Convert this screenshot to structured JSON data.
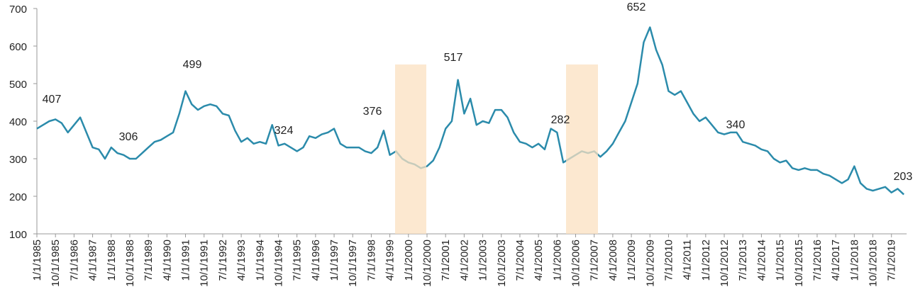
{
  "chart_data": {
    "type": "line",
    "categories": [
      "1/1/1985",
      null,
      null,
      "10/1/1985",
      null,
      null,
      "7/1/1986",
      null,
      null,
      "4/1/1987",
      null,
      null,
      "1/1/1988",
      null,
      null,
      "10/1/1988",
      null,
      null,
      "7/1/1989",
      null,
      null,
      "4/1/1990",
      null,
      null,
      "1/1/1991",
      null,
      null,
      "10/1/1991",
      null,
      null,
      "7/1/1992",
      null,
      null,
      "4/1/1993",
      null,
      null,
      "1/1/1994",
      null,
      null,
      "10/1/1994",
      null,
      null,
      "7/1/1995",
      null,
      null,
      "4/1/1996",
      null,
      null,
      "1/1/1997",
      null,
      null,
      "10/1/1997",
      null,
      null,
      "7/1/1998",
      null,
      null,
      "4/1/1999",
      null,
      null,
      "1/1/2000",
      null,
      null,
      "10/1/2000",
      null,
      null,
      "7/1/2001",
      null,
      null,
      "4/1/2002",
      null,
      null,
      "1/1/2003",
      null,
      null,
      "10/1/2003",
      null,
      null,
      "7/1/2004",
      null,
      null,
      "4/1/2005",
      null,
      null,
      "1/1/2006",
      null,
      null,
      "10/1/2006",
      null,
      null,
      "7/1/2007",
      null,
      null,
      "4/1/2008",
      null,
      null,
      "1/1/2009",
      null,
      null,
      "10/1/2009",
      null,
      null,
      "7/1/2010",
      null,
      null,
      "4/1/2011",
      null,
      null,
      "1/1/2012",
      null,
      null,
      "10/1/2012",
      null,
      null,
      "7/1/2013",
      null,
      null,
      "4/1/2014",
      null,
      null,
      "1/1/2015",
      null,
      null,
      "10/1/2015",
      null,
      null,
      "7/1/2016",
      null,
      null,
      "4/1/2017",
      null,
      null,
      "1/1/2018",
      null,
      null,
      "10/1/2018",
      null,
      null,
      "7/1/2019",
      null,
      null
    ],
    "values": [
      380,
      390,
      400,
      405,
      395,
      370,
      390,
      410,
      370,
      330,
      325,
      300,
      330,
      315,
      310,
      300,
      300,
      315,
      330,
      345,
      350,
      360,
      370,
      420,
      480,
      445,
      430,
      440,
      445,
      440,
      420,
      415,
      375,
      345,
      355,
      340,
      345,
      340,
      390,
      335,
      340,
      330,
      320,
      330,
      360,
      355,
      365,
      370,
      380,
      340,
      330,
      330,
      330,
      320,
      315,
      330,
      375,
      310,
      320,
      300,
      290,
      285,
      275,
      280,
      295,
      330,
      380,
      400,
      510,
      420,
      460,
      390,
      400,
      395,
      430,
      430,
      410,
      370,
      345,
      340,
      330,
      340,
      325,
      380,
      370,
      290,
      300,
      310,
      320,
      315,
      320,
      305,
      320,
      340,
      370,
      400,
      450,
      500,
      610,
      650,
      590,
      550,
      480,
      470,
      480,
      450,
      420,
      400,
      410,
      390,
      370,
      365,
      370,
      370,
      345,
      340,
      335,
      325,
      320,
      300,
      290,
      295,
      275,
      270,
      275,
      270,
      270,
      260,
      255,
      245,
      235,
      245,
      280,
      235,
      220,
      215,
      220,
      225,
      210,
      220,
      205
    ],
    "color": "#2b8bab",
    "ylim": [
      100,
      700
    ],
    "yticks": [
      100,
      200,
      300,
      400,
      500,
      600,
      700
    ],
    "annotations": [
      "407",
      "306",
      "499",
      "324",
      "376",
      "517",
      "282",
      "652",
      "340",
      "203"
    ]
  }
}
